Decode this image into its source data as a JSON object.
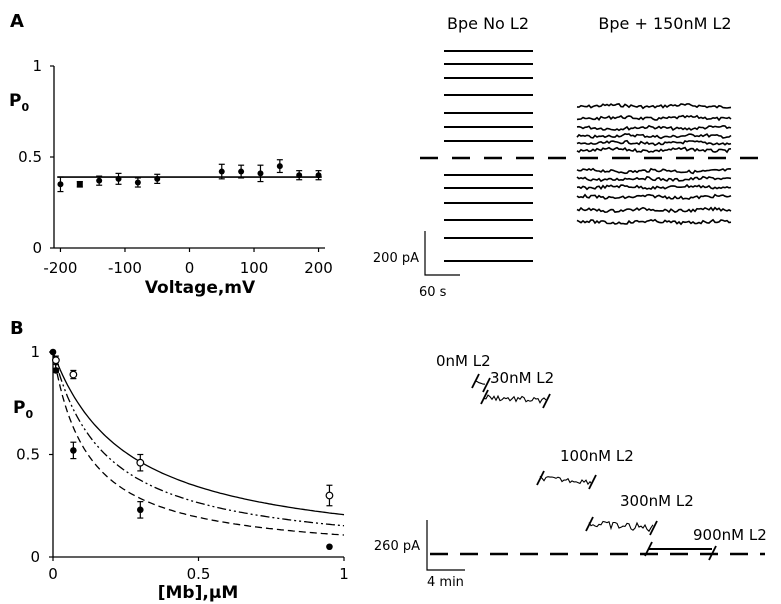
{
  "panel_a": {
    "label": "A"
  },
  "panel_b": {
    "label": "B"
  },
  "chart_data": [
    {
      "type": "scatter",
      "ylabel_main": "P",
      "ylabel_sub": "0",
      "xlabel": "Voltage,mV",
      "xlim": [
        -210,
        210
      ],
      "ylim": [
        0,
        1
      ],
      "xticks": [
        -200,
        -100,
        0,
        100,
        200
      ],
      "yticks": [
        0,
        0.5,
        1
      ],
      "ytick_labels": [
        "0",
        "0.5",
        "1"
      ],
      "points": [
        {
          "x": -200,
          "y": 0.35,
          "err": 0.04
        },
        {
          "x": -170,
          "y": 0.35,
          "err": 0.015
        },
        {
          "x": -140,
          "y": 0.37,
          "err": 0.025
        },
        {
          "x": -110,
          "y": 0.38,
          "err": 0.03
        },
        {
          "x": -80,
          "y": 0.36,
          "err": 0.025
        },
        {
          "x": -50,
          "y": 0.38,
          "err": 0.025
        },
        {
          "x": 50,
          "y": 0.42,
          "err": 0.04
        },
        {
          "x": 80,
          "y": 0.42,
          "err": 0.035
        },
        {
          "x": 110,
          "y": 0.41,
          "err": 0.045
        },
        {
          "x": 140,
          "y": 0.45,
          "err": 0.035
        },
        {
          "x": 170,
          "y": 0.4,
          "err": 0.025
        },
        {
          "x": 200,
          "y": 0.4,
          "err": 0.025
        }
      ],
      "fit_line": {
        "y": 0.39
      }
    },
    {
      "type": "line",
      "ylabel_main": "P",
      "ylabel_sub": "0",
      "xlabel": "[Mb],μM",
      "xlim": [
        0,
        1
      ],
      "ylim": [
        0,
        1
      ],
      "xticks": [
        0,
        0.5,
        1
      ],
      "xtick_labels": [
        "0",
        "0.5",
        "1"
      ],
      "yticks": [
        0,
        0.5,
        1
      ],
      "ytick_labels": [
        "0",
        "0.5",
        "1"
      ],
      "series": [
        {
          "style": "solid",
          "marker": "open-circle",
          "kd": 0.26,
          "points": [
            {
              "x": 0.01,
              "y": 0.96,
              "err": 0.02
            },
            {
              "x": 0.07,
              "y": 0.89,
              "err": 0.02
            },
            {
              "x": 0.3,
              "y": 0.46,
              "err": 0.04
            },
            {
              "x": 0.95,
              "y": 0.3,
              "err": 0.05
            }
          ]
        },
        {
          "style": "dash-dot-dot",
          "marker": "none",
          "kd": 0.18,
          "points": []
        },
        {
          "style": "dashed",
          "marker": "filled-circle",
          "kd": 0.12,
          "points": [
            {
              "x": 0.0,
              "y": 1.0,
              "err": 0
            },
            {
              "x": 0.01,
              "y": 0.91,
              "err": 0.01
            },
            {
              "x": 0.07,
              "y": 0.52,
              "err": 0.04
            },
            {
              "x": 0.3,
              "y": 0.23,
              "err": 0.04
            },
            {
              "x": 0.95,
              "y": 0.05,
              "err": 0
            }
          ]
        }
      ]
    }
  ],
  "traces_a": {
    "title_left": "Bpe No L2",
    "title_right": "Bpe + 150nM L2",
    "scale_current": "200 pA",
    "scale_time": "60 s"
  },
  "traces_b": {
    "labels": [
      "0nM L2",
      "30nM L2",
      "100nM L2",
      "300nM L2",
      "900nM L2"
    ],
    "scale_current": "260 pA",
    "scale_time": "4 min"
  }
}
